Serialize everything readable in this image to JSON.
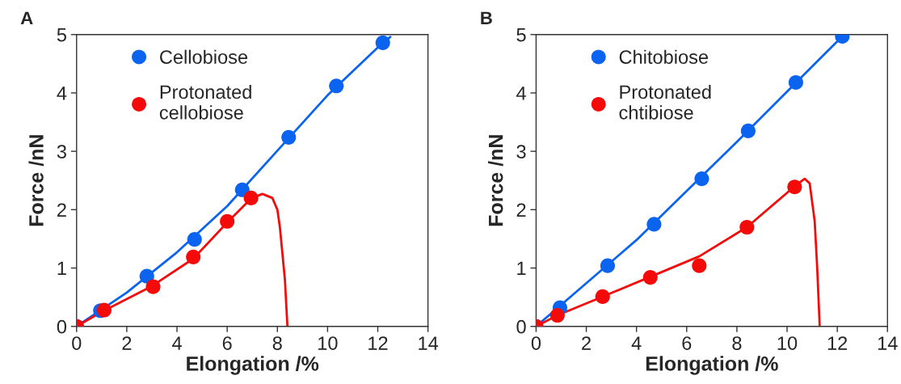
{
  "chart_data": [
    {
      "type": "scatter",
      "xlabel": "Elongation /%",
      "ylabel": "Force /nN",
      "annotations": [
        "A"
      ],
      "xlim": [
        0,
        14
      ],
      "ylim": [
        0,
        5
      ],
      "xticks": [
        0,
        2,
        4,
        6,
        8,
        10,
        12,
        14
      ],
      "yticks": [
        0,
        1,
        2,
        3,
        4,
        5
      ],
      "grid": false,
      "legend": "top left",
      "marker": "circle",
      "series": [
        {
          "name": "Cellobiose",
          "color": "#0a64f0",
          "x": [
            0,
            0.95,
            2.8,
            4.7,
            6.6,
            8.45,
            10.35,
            12.2
          ],
          "values": [
            0,
            0.27,
            0.86,
            1.49,
            2.34,
            3.24,
            4.12,
            4.86
          ]
        },
        {
          "name": "Protonated\ncellobiose",
          "color": "#f50a0a",
          "x": [
            0,
            1.1,
            3.05,
            4.65,
            6.0,
            6.95
          ],
          "values": [
            0,
            0.28,
            0.68,
            1.19,
            1.8,
            2.2
          ]
        },
        {
          "type": "line",
          "color": "#0a64f0",
          "line_style": "solid",
          "marker": "none",
          "x": [
            0,
            2,
            4,
            6,
            8,
            10,
            12,
            12.5
          ],
          "values": [
            0,
            0.58,
            1.27,
            2.06,
            3.01,
            3.96,
            4.78,
            4.96
          ]
        },
        {
          "type": "line",
          "color": "#f50a0a",
          "line_style": "solid",
          "marker": "none",
          "x": [
            0,
            1,
            3,
            4.65,
            6,
            6.95,
            7.4,
            7.8,
            8.0,
            8.1,
            8.3,
            8.4
          ],
          "values": [
            0,
            0.25,
            0.69,
            1.16,
            1.78,
            2.19,
            2.27,
            2.2,
            2.0,
            1.7,
            0.8,
            0
          ]
        }
      ]
    },
    {
      "type": "scatter",
      "xlabel": "Elongation /%",
      "ylabel": "Force /nN",
      "annotations": [
        "B"
      ],
      "xlim": [
        0,
        14
      ],
      "ylim": [
        0,
        5
      ],
      "xticks": [
        0,
        2,
        4,
        6,
        8,
        10,
        12,
        14
      ],
      "yticks": [
        0,
        1,
        2,
        3,
        4,
        5
      ],
      "grid": false,
      "legend": "top left",
      "marker": "circle",
      "series": [
        {
          "name": "Chitobiose",
          "color": "#0a64f0",
          "x": [
            0,
            0.95,
            2.85,
            4.7,
            6.6,
            8.45,
            10.35,
            12.2
          ],
          "values": [
            0,
            0.32,
            1.04,
            1.75,
            2.53,
            3.35,
            4.18,
            4.97
          ]
        },
        {
          "name": "Protonated\nchtibiose",
          "color": "#f50a0a",
          "x": [
            0,
            0.85,
            2.65,
            4.55,
            6.5,
            8.4,
            10.3
          ],
          "values": [
            0,
            0.19,
            0.51,
            0.84,
            1.04,
            1.7,
            2.39
          ]
        },
        {
          "type": "line",
          "color": "#0a64f0",
          "line_style": "solid",
          "marker": "none",
          "x": [
            0,
            4,
            8,
            12.2
          ],
          "values": [
            0,
            1.48,
            3.16,
            4.97
          ]
        },
        {
          "type": "line",
          "color": "#f50a0a",
          "line_style": "solid",
          "marker": "none",
          "x": [
            0,
            0.85,
            2.65,
            4.55,
            6.5,
            8.4,
            10.3,
            10.7,
            10.9,
            11.1,
            11.2,
            11.3
          ],
          "values": [
            0,
            0.19,
            0.51,
            0.85,
            1.2,
            1.7,
            2.4,
            2.53,
            2.45,
            1.8,
            1.0,
            0
          ]
        }
      ]
    }
  ]
}
